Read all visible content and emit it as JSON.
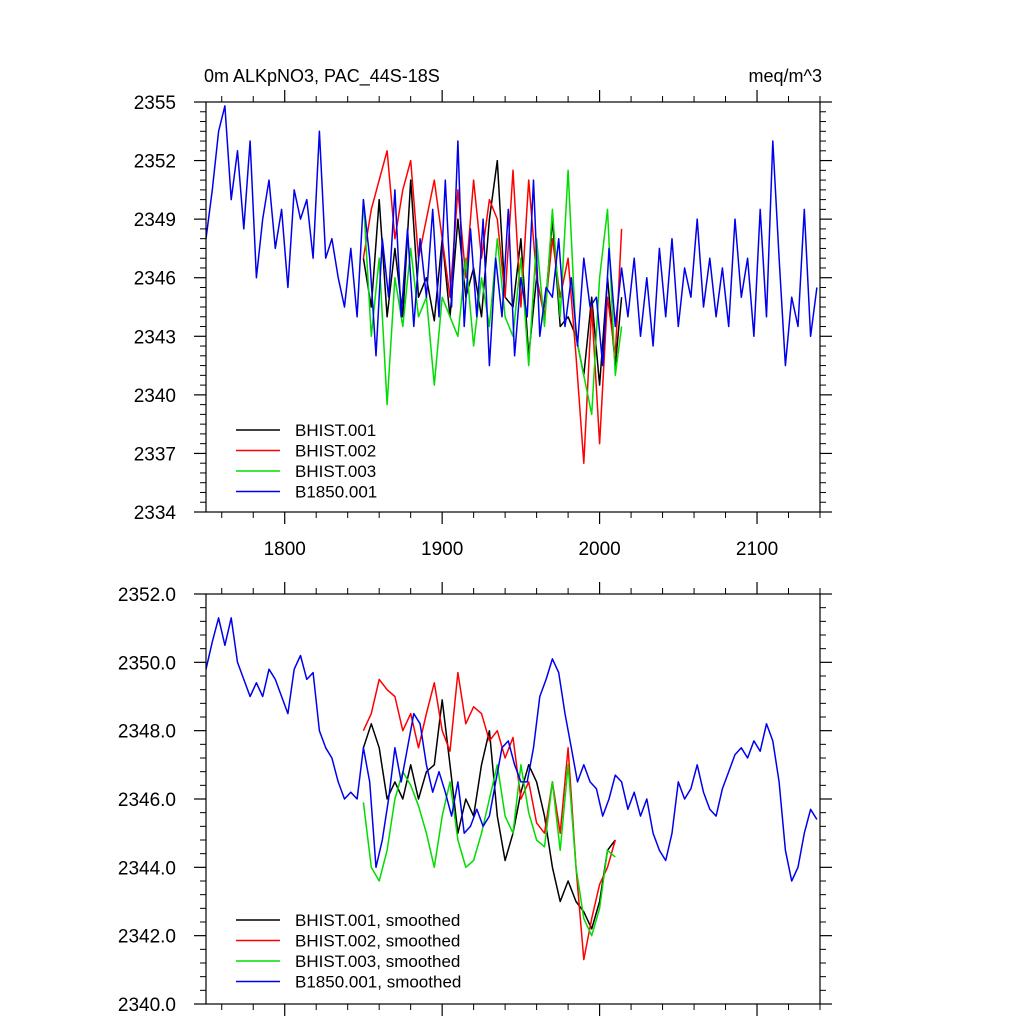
{
  "chart_data": [
    {
      "type": "line",
      "title_left": "0m ALKpNO3, PAC_44S-18S",
      "title_right": "meq/m^3",
      "xlabel": "",
      "ylabel": "",
      "xlim": [
        1750,
        2140
      ],
      "ylim": [
        2334,
        2355
      ],
      "xticks": [
        1800,
        1900,
        2000,
        2100
      ],
      "xtick_labels": [
        "1800",
        "1900",
        "2000",
        "2100"
      ],
      "yticks": [
        2334,
        2337,
        2340,
        2343,
        2346,
        2349,
        2352,
        2355
      ],
      "ytick_labels": [
        "2334",
        "2337",
        "2340",
        "2343",
        "2346",
        "2349",
        "2352",
        "2355"
      ],
      "legend_position": "bottom-left",
      "series": [
        {
          "name": "BHIST.001",
          "color": "#000000",
          "x": [
            1850,
            1855,
            1860,
            1865,
            1870,
            1875,
            1880,
            1885,
            1890,
            1895,
            1900,
            1905,
            1910,
            1915,
            1920,
            1925,
            1930,
            1935,
            1940,
            1945,
            1950,
            1955,
            1960,
            1965,
            1970,
            1975,
            1980,
            1985,
            1990,
            1995,
            2000,
            2005,
            2010,
            2014
          ],
          "y": [
            2347,
            2344.5,
            2350,
            2344,
            2347.5,
            2344,
            2351,
            2345,
            2346,
            2343.8,
            2348,
            2344,
            2349,
            2345,
            2346.5,
            2344,
            2349,
            2352,
            2345,
            2344.5,
            2348,
            2342,
            2346,
            2344,
            2349,
            2343.5,
            2344,
            2343,
            2341,
            2345,
            2340.5,
            2346,
            2341.5,
            2345
          ]
        },
        {
          "name": "BHIST.002",
          "color": "#ff0000",
          "x": [
            1850,
            1855,
            1860,
            1865,
            1870,
            1875,
            1880,
            1885,
            1890,
            1895,
            1900,
            1905,
            1910,
            1915,
            1920,
            1925,
            1930,
            1935,
            1940,
            1945,
            1950,
            1955,
            1960,
            1965,
            1970,
            1975,
            1980,
            1985,
            1990,
            1995,
            2000,
            2005,
            2010,
            2014
          ],
          "y": [
            2347,
            2349.5,
            2351,
            2352.5,
            2348,
            2350.5,
            2352,
            2347,
            2349,
            2351,
            2348,
            2345,
            2350.5,
            2346,
            2351,
            2347,
            2350,
            2349,
            2345,
            2351.5,
            2344.5,
            2351,
            2346,
            2344,
            2348,
            2345,
            2347,
            2342,
            2336.5,
            2344.5,
            2337.5,
            2345,
            2342,
            2348.5
          ]
        },
        {
          "name": "BHIST.003",
          "color": "#00dd00",
          "x": [
            1850,
            1855,
            1860,
            1865,
            1870,
            1875,
            1880,
            1885,
            1890,
            1895,
            1900,
            1905,
            1910,
            1915,
            1920,
            1925,
            1930,
            1935,
            1940,
            1945,
            1950,
            1955,
            1960,
            1965,
            1970,
            1975,
            1980,
            1985,
            1990,
            1995,
            2000,
            2005,
            2010,
            2014
          ],
          "y": [
            2350,
            2343,
            2347,
            2339.5,
            2346,
            2343.5,
            2347.5,
            2344,
            2345,
            2340.5,
            2345,
            2344,
            2343,
            2347,
            2342.5,
            2346,
            2343.5,
            2348,
            2344,
            2343,
            2347,
            2341.5,
            2348,
            2343.5,
            2349.5,
            2344,
            2351.5,
            2343,
            2341,
            2339,
            2346,
            2349.5,
            2341,
            2343.5
          ]
        },
        {
          "name": "B1850.001",
          "color": "#0000ee",
          "x": [
            1750,
            1754,
            1758,
            1762,
            1766,
            1770,
            1774,
            1778,
            1782,
            1786,
            1790,
            1794,
            1798,
            1802,
            1806,
            1810,
            1814,
            1818,
            1822,
            1826,
            1830,
            1834,
            1838,
            1842,
            1846,
            1850,
            1854,
            1858,
            1862,
            1866,
            1870,
            1874,
            1878,
            1882,
            1886,
            1890,
            1894,
            1898,
            1902,
            1906,
            1910,
            1914,
            1918,
            1922,
            1926,
            1930,
            1934,
            1938,
            1942,
            1946,
            1950,
            1954,
            1958,
            1962,
            1966,
            1970,
            1974,
            1978,
            1982,
            1986,
            1990,
            1994,
            1998,
            2002,
            2006,
            2010,
            2014,
            2018,
            2022,
            2026,
            2030,
            2034,
            2038,
            2042,
            2046,
            2050,
            2054,
            2058,
            2062,
            2066,
            2070,
            2074,
            2078,
            2082,
            2086,
            2090,
            2094,
            2098,
            2102,
            2106,
            2110,
            2114,
            2118,
            2122,
            2126,
            2130,
            2134,
            2138
          ],
          "y": [
            2348,
            2350.5,
            2353.5,
            2354.8,
            2350,
            2352.5,
            2348.5,
            2353,
            2346,
            2349,
            2351,
            2347.5,
            2349.5,
            2345.5,
            2350.5,
            2349,
            2350,
            2347,
            2353.5,
            2347,
            2348,
            2346,
            2344.5,
            2347.5,
            2344,
            2350,
            2347,
            2342,
            2348,
            2345,
            2350.5,
            2344,
            2348.5,
            2343.5,
            2348,
            2345,
            2349.5,
            2344,
            2351,
            2344.5,
            2353,
            2343.5,
            2348.5,
            2344,
            2349,
            2341.5,
            2347,
            2344,
            2349.5,
            2342,
            2346,
            2344,
            2351,
            2343,
            2345.5,
            2345,
            2348,
            2343.5,
            2346,
            2342.5,
            2347,
            2344.5,
            2345,
            2341.5,
            2347.5,
            2343.5,
            2346.5,
            2344,
            2347,
            2343,
            2346,
            2342.5,
            2347.5,
            2344,
            2348,
            2343.5,
            2346.5,
            2345,
            2349,
            2344.5,
            2347,
            2344,
            2346.5,
            2343.5,
            2349,
            2345,
            2347,
            2343,
            2349.5,
            2344,
            2353,
            2347,
            2341.5,
            2345,
            2343.5,
            2349.5,
            2343,
            2345.5
          ]
        }
      ]
    },
    {
      "type": "line",
      "xlabel": "",
      "ylabel": "",
      "xlim": [
        1750,
        2140
      ],
      "ylim": [
        2340,
        2352
      ],
      "xticks": [
        1800,
        1900,
        2000,
        2100
      ],
      "yticks": [
        2340,
        2342,
        2344,
        2346,
        2348,
        2350,
        2352
      ],
      "ytick_labels": [
        "2340.0",
        "2342.0",
        "2344.0",
        "2346.0",
        "2348.0",
        "2350.0",
        "2352.0"
      ],
      "legend_position": "bottom-left",
      "series": [
        {
          "name": "BHIST.001, smoothed",
          "color": "#000000",
          "x": [
            1850,
            1855,
            1860,
            1865,
            1870,
            1875,
            1880,
            1885,
            1890,
            1895,
            1900,
            1905,
            1910,
            1915,
            1920,
            1925,
            1930,
            1935,
            1940,
            1945,
            1950,
            1955,
            1960,
            1965,
            1970,
            1975,
            1980,
            1985,
            1990,
            1995,
            2000,
            2005,
            2010
          ],
          "y": [
            2347.5,
            2348.2,
            2347.5,
            2346,
            2346.5,
            2346,
            2347,
            2346,
            2346.8,
            2347,
            2348.9,
            2347,
            2345,
            2346,
            2345.5,
            2347,
            2348,
            2345.5,
            2344.2,
            2345,
            2346.2,
            2347,
            2346.5,
            2345.5,
            2344,
            2343,
            2343.6,
            2343,
            2342.7,
            2342.2,
            2343,
            2344.5,
            2344.8
          ]
        },
        {
          "name": "BHIST.002, smoothed",
          "color": "#ff0000",
          "x": [
            1850,
            1855,
            1860,
            1865,
            1870,
            1875,
            1880,
            1885,
            1890,
            1895,
            1900,
            1905,
            1910,
            1915,
            1920,
            1925,
            1930,
            1935,
            1940,
            1945,
            1950,
            1955,
            1960,
            1965,
            1970,
            1975,
            1980,
            1985,
            1990,
            1995,
            2000,
            2005,
            2010
          ],
          "y": [
            2348,
            2348.5,
            2349.5,
            2349.2,
            2349,
            2348,
            2348.5,
            2347.5,
            2348.5,
            2349.4,
            2348,
            2347.4,
            2349.7,
            2348.2,
            2348.7,
            2348.5,
            2347.7,
            2348,
            2347.2,
            2347.8,
            2346,
            2346.5,
            2345.3,
            2345,
            2346.5,
            2345,
            2347.5,
            2344,
            2341.3,
            2342.5,
            2343.5,
            2344,
            2344.8
          ]
        },
        {
          "name": "BHIST.003, smoothed",
          "color": "#00dd00",
          "x": [
            1850,
            1855,
            1860,
            1865,
            1870,
            1875,
            1880,
            1885,
            1890,
            1895,
            1900,
            1905,
            1910,
            1915,
            1920,
            1925,
            1930,
            1935,
            1940,
            1945,
            1950,
            1955,
            1960,
            1965,
            1970,
            1975,
            1980,
            1985,
            1990,
            1995,
            2000,
            2005,
            2010
          ],
          "y": [
            2345.9,
            2344,
            2343.6,
            2344.5,
            2346,
            2346.8,
            2346.4,
            2345.8,
            2345,
            2344,
            2345.5,
            2346.5,
            2344.8,
            2344,
            2344.2,
            2345,
            2346,
            2347,
            2345.5,
            2345,
            2347,
            2345.6,
            2344.8,
            2344.6,
            2346.5,
            2344.5,
            2347,
            2344,
            2342.5,
            2342,
            2342.8,
            2344.5,
            2344.3
          ]
        },
        {
          "name": "B1850.001, smoothed",
          "color": "#0000ee",
          "x": [
            1750,
            1754,
            1758,
            1762,
            1766,
            1770,
            1774,
            1778,
            1782,
            1786,
            1790,
            1794,
            1798,
            1802,
            1806,
            1810,
            1814,
            1818,
            1822,
            1826,
            1830,
            1834,
            1838,
            1842,
            1846,
            1850,
            1854,
            1858,
            1862,
            1866,
            1870,
            1874,
            1878,
            1882,
            1886,
            1890,
            1894,
            1898,
            1902,
            1906,
            1910,
            1914,
            1918,
            1922,
            1926,
            1930,
            1934,
            1938,
            1942,
            1946,
            1950,
            1954,
            1958,
            1962,
            1966,
            1970,
            1974,
            1978,
            1982,
            1986,
            1990,
            1994,
            1998,
            2002,
            2006,
            2010,
            2014,
            2018,
            2022,
            2026,
            2030,
            2034,
            2038,
            2042,
            2046,
            2050,
            2054,
            2058,
            2062,
            2066,
            2070,
            2074,
            2078,
            2082,
            2086,
            2090,
            2094,
            2098,
            2102,
            2106,
            2110,
            2114,
            2118,
            2122,
            2126,
            2130,
            2134,
            2138
          ],
          "y": [
            2349.8,
            2350.6,
            2351.3,
            2350.5,
            2351.3,
            2350,
            2349.5,
            2349,
            2349.4,
            2349,
            2349.8,
            2349.5,
            2349,
            2348.5,
            2349.8,
            2350.2,
            2349.5,
            2349.7,
            2348,
            2347.5,
            2347.2,
            2346.5,
            2346,
            2346.2,
            2346,
            2347.5,
            2346.5,
            2344,
            2344.8,
            2346,
            2347.5,
            2346.5,
            2347.5,
            2348.5,
            2348.2,
            2347,
            2346.2,
            2346.8,
            2346.2,
            2345.5,
            2346.5,
            2345,
            2345.2,
            2345.7,
            2345.2,
            2345.5,
            2346.5,
            2347.5,
            2347.7,
            2347,
            2346.5,
            2346.5,
            2347.5,
            2349,
            2349.5,
            2350.1,
            2349.7,
            2348.5,
            2347.5,
            2346.5,
            2347,
            2346.5,
            2346.3,
            2345.5,
            2346,
            2346.7,
            2346.5,
            2345.7,
            2346.2,
            2345.5,
            2346,
            2345,
            2344.5,
            2344.2,
            2345,
            2346.5,
            2346,
            2346.3,
            2347,
            2346.2,
            2345.7,
            2345.5,
            2346.3,
            2346.8,
            2347.3,
            2347.5,
            2347.2,
            2347.7,
            2347.4,
            2348.2,
            2347.7,
            2346.5,
            2344.5,
            2343.6,
            2344,
            2345,
            2345.7,
            2345.4
          ]
        }
      ]
    }
  ]
}
